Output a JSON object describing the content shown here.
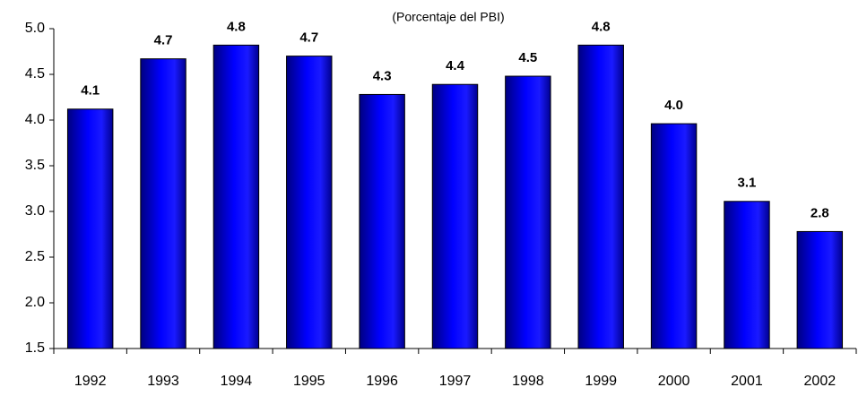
{
  "chart_data": {
    "type": "bar",
    "subtitle": "(Porcentaje del PBI)",
    "categories": [
      "1992",
      "1993",
      "1994",
      "1995",
      "1996",
      "1997",
      "1998",
      "1999",
      "2000",
      "2001",
      "2002"
    ],
    "values": [
      4.12,
      4.67,
      4.82,
      4.7,
      4.28,
      4.39,
      4.48,
      4.82,
      3.96,
      3.11,
      2.78
    ],
    "value_labels": [
      "4.1",
      "4.7",
      "4.8",
      "4.7",
      "4.3",
      "4.4",
      "4.5",
      "4.8",
      "4.0",
      "3.1",
      "2.8"
    ],
    "color": "#0000ff",
    "ylim": [
      1.5,
      5.0
    ],
    "yticks": [
      1.5,
      {
        "value": 2.0,
        "label": "2.0"
      },
      2.5,
      {
        "value": 3.0,
        "label": "3.0"
      },
      3.5,
      {
        "value": 4.0,
        "label": "4.0"
      },
      4.5,
      {
        "value": 5.0,
        "label": "5.0"
      }
    ],
    "grid": false
  }
}
